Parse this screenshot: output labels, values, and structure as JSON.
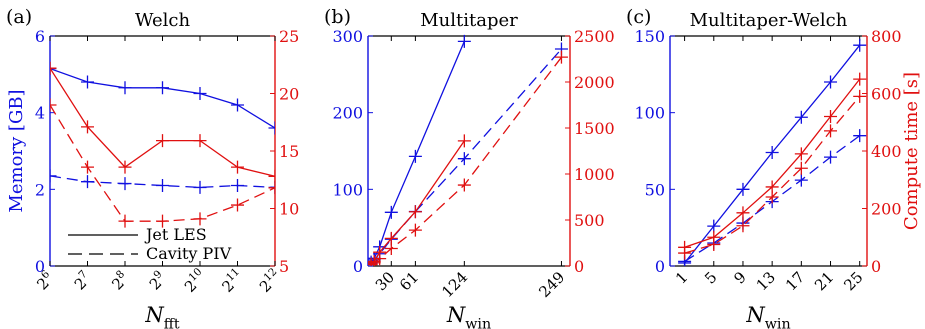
{
  "colors": {
    "left_axis": "#1010e0",
    "right_axis": "#e01010",
    "axis": "#000000"
  },
  "chart_data": [
    {
      "panel_label": "(a)",
      "title": "Welch",
      "type": "line",
      "xlabel_main": "N",
      "xlabel_sub": "fft",
      "ylabel_left": "Memory [GB]",
      "ylabel_right": "",
      "x_scale": "log2",
      "x_ticks": [
        {
          "value": 64,
          "base": "2",
          "exp": "6"
        },
        {
          "value": 128,
          "base": "2",
          "exp": "7"
        },
        {
          "value": 256,
          "base": "2",
          "exp": "8"
        },
        {
          "value": 512,
          "base": "2",
          "exp": "9"
        },
        {
          "value": 1024,
          "base": "2",
          "exp": "10"
        },
        {
          "value": 2048,
          "base": "2",
          "exp": "11"
        },
        {
          "value": 4096,
          "base": "2",
          "exp": "12"
        }
      ],
      "xlim": [
        64,
        4096
      ],
      "ylim_left": [
        0,
        6
      ],
      "yticks_left": [
        "0",
        "2",
        "4",
        "6"
      ],
      "ylim_right": [
        5,
        25
      ],
      "yticks_right": [
        "5",
        "10",
        "15",
        "20",
        "25"
      ],
      "series": [
        {
          "axis": "left",
          "style": "solid",
          "x": [
            64,
            128,
            256,
            512,
            1024,
            2048,
            4096
          ],
          "y": [
            5.15,
            4.8,
            4.65,
            4.65,
            4.5,
            4.2,
            3.6
          ]
        },
        {
          "axis": "left",
          "style": "dashed",
          "x": [
            64,
            128,
            256,
            512,
            1024,
            2048,
            4096
          ],
          "y": [
            2.35,
            2.2,
            2.15,
            2.1,
            2.05,
            2.1,
            2.05
          ]
        },
        {
          "axis": "right",
          "style": "solid",
          "x": [
            64,
            128,
            256,
            512,
            1024,
            2048,
            4096
          ],
          "y": [
            22.2,
            17.1,
            13.6,
            15.9,
            15.9,
            13.6,
            12.8
          ]
        },
        {
          "axis": "right",
          "style": "dashed",
          "x": [
            64,
            128,
            256,
            512,
            1024,
            2048,
            4096
          ],
          "y": [
            19.0,
            13.6,
            8.9,
            8.9,
            9.1,
            10.3,
            11.8
          ]
        }
      ],
      "legend": {
        "placement": "bottom-left",
        "entries": [
          {
            "label": "Jet LES",
            "style": "solid"
          },
          {
            "label": "Cavity PIV",
            "style": "dashed"
          }
        ]
      }
    },
    {
      "panel_label": "(b)",
      "title": "Multitaper",
      "type": "line",
      "xlabel_main": "N",
      "xlabel_sub": "win",
      "ylabel_left": "",
      "ylabel_right": "",
      "x_scale": "linear",
      "xlim": [
        0,
        260
      ],
      "x_ticks": [
        {
          "value": 30,
          "label": "30"
        },
        {
          "value": 61,
          "label": "61"
        },
        {
          "value": 124,
          "label": "124"
        },
        {
          "value": 249,
          "label": "249"
        }
      ],
      "ylim_left": [
        0,
        300
      ],
      "yticks_left": [
        "0",
        "100",
        "200",
        "300"
      ],
      "ylim_right": [
        0,
        2500
      ],
      "yticks_right": [
        "0",
        "500",
        "1000",
        "1500",
        "2000",
        "2500"
      ],
      "series": [
        {
          "axis": "left",
          "style": "solid",
          "x": [
            4,
            8,
            15,
            30,
            61,
            124
          ],
          "y": [
            5,
            10,
            25,
            70,
            143,
            293
          ]
        },
        {
          "axis": "left",
          "style": "dashed",
          "x": [
            4,
            8,
            15,
            30,
            61,
            124,
            249
          ],
          "y": [
            3,
            8,
            16,
            35,
            71,
            140,
            283
          ]
        },
        {
          "axis": "right",
          "style": "solid",
          "x": [
            4,
            8,
            15,
            30,
            61,
            124
          ],
          "y": [
            20,
            50,
            150,
            300,
            590,
            1360
          ]
        },
        {
          "axis": "right",
          "style": "dashed",
          "x": [
            4,
            8,
            15,
            30,
            61,
            124,
            249
          ],
          "y": [
            15,
            35,
            80,
            190,
            390,
            880,
            2270
          ]
        }
      ]
    },
    {
      "panel_label": "(c)",
      "title": "Multitaper-Welch",
      "type": "line",
      "xlabel_main": "N",
      "xlabel_sub": "win",
      "ylabel_left": "",
      "ylabel_right": "Compute time [s]",
      "x_scale": "linear",
      "xlim": [
        -1,
        26
      ],
      "x_ticks": [
        {
          "value": 1,
          "label": "1"
        },
        {
          "value": 5,
          "label": "5"
        },
        {
          "value": 9,
          "label": "9"
        },
        {
          "value": 13,
          "label": "13"
        },
        {
          "value": 17,
          "label": "17"
        },
        {
          "value": 21,
          "label": "21"
        },
        {
          "value": 25,
          "label": "25"
        }
      ],
      "ylim_left": [
        0,
        150
      ],
      "yticks_left": [
        "0",
        "50",
        "100",
        "150"
      ],
      "ylim_right": [
        0,
        800
      ],
      "yticks_right": [
        "0",
        "200",
        "400",
        "600",
        "800"
      ],
      "series": [
        {
          "axis": "left",
          "style": "solid",
          "x": [
            1,
            5,
            9,
            13,
            17,
            21,
            25
          ],
          "y": [
            2,
            26,
            50,
            74,
            97,
            120,
            144
          ]
        },
        {
          "axis": "left",
          "style": "dashed",
          "x": [
            1,
            5,
            9,
            13,
            17,
            21,
            25
          ],
          "y": [
            3,
            15,
            28,
            42,
            56,
            71,
            85
          ]
        },
        {
          "axis": "right",
          "style": "solid",
          "x": [
            1,
            5,
            9,
            13,
            17,
            21,
            25
          ],
          "y": [
            65,
            100,
            185,
            275,
            390,
            520,
            650
          ]
        },
        {
          "axis": "right",
          "style": "dashed",
          "x": [
            1,
            5,
            9,
            13,
            17,
            21,
            25
          ],
          "y": [
            45,
            75,
            140,
            240,
            340,
            470,
            590
          ]
        }
      ]
    }
  ]
}
